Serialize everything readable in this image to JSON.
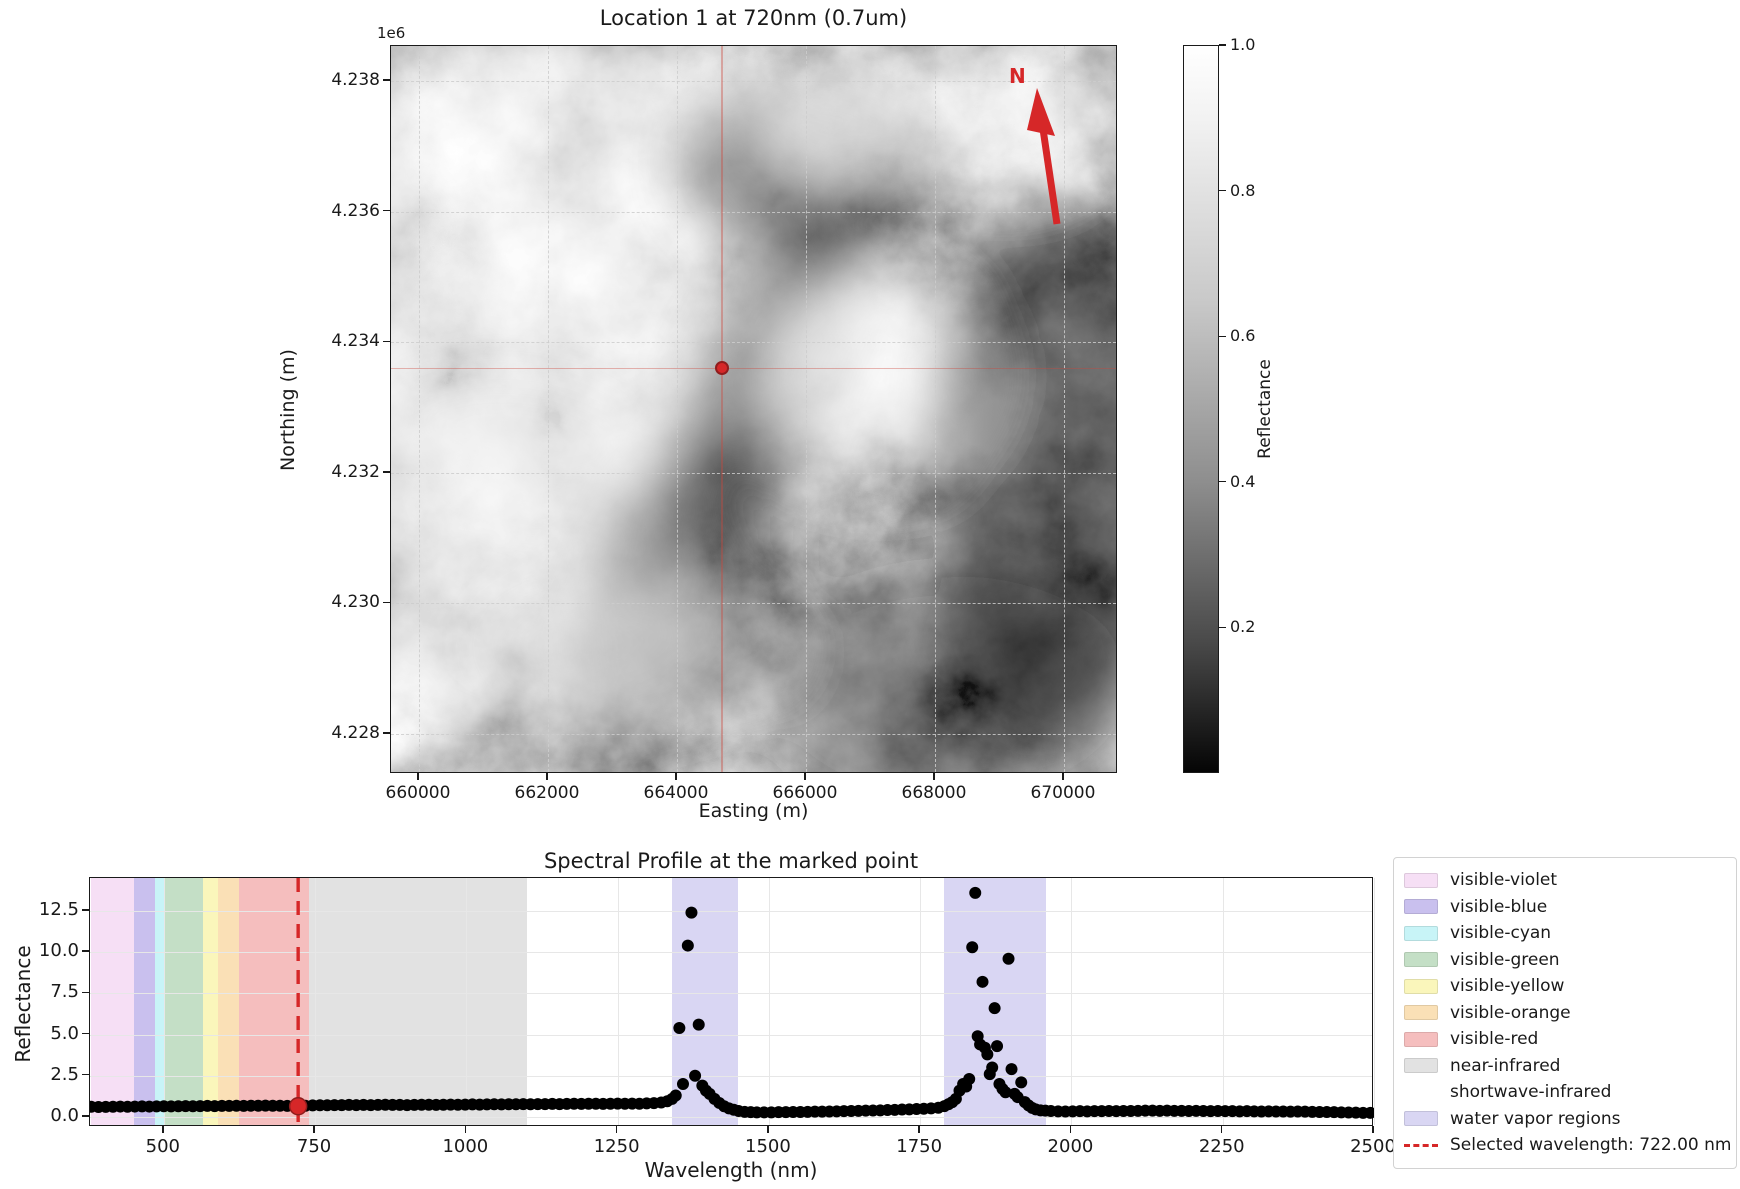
{
  "figure1": {
    "title": "Location 1 at 720nm (0.7um)",
    "offset_label": "1e6",
    "xlabel": "Easting (m)",
    "ylabel": "Northing (m)",
    "north_label": "N"
  },
  "figure2": {
    "title": "Spectral Profile at the marked point",
    "xlabel": "Wavelength (nm)",
    "ylabel": "Reflectance"
  },
  "legend": {
    "entries": [
      {
        "label": "visible-violet",
        "swatch": "#f6dff5",
        "type": "patch"
      },
      {
        "label": "visible-blue",
        "swatch": "#c9c0ee",
        "type": "patch"
      },
      {
        "label": "visible-cyan",
        "swatch": "#c8f4f7",
        "type": "patch"
      },
      {
        "label": "visible-green",
        "swatch": "#c4dfc6",
        "type": "patch"
      },
      {
        "label": "visible-yellow",
        "swatch": "#faf6bb",
        "type": "patch"
      },
      {
        "label": "visible-orange",
        "swatch": "#fae0b6",
        "type": "patch"
      },
      {
        "label": "visible-red",
        "swatch": "#f5bebe",
        "type": "patch"
      },
      {
        "label": "near-infrared",
        "swatch": "#e2e2e2",
        "type": "patch"
      },
      {
        "label": "shortwave-infrared",
        "swatch": "#ffffff",
        "type": "patch-invisible"
      },
      {
        "label": "water vapor regions",
        "swatch": "#d9d6f3",
        "type": "patch"
      },
      {
        "label": "Selected wavelength: 722.00 nm",
        "swatch": "#d62728",
        "type": "dashed-line"
      }
    ]
  },
  "chart_data": [
    {
      "type": "heatmap",
      "title": "Location 1 at 720nm (0.7um)",
      "xlabel": "Easting (m)",
      "ylabel": "Northing (m)",
      "xlim": [
        659566,
        670837
      ],
      "ylim": [
        4227388,
        4238536
      ],
      "x_ticks": [
        {
          "v": 660000,
          "label": "660000"
        },
        {
          "v": 662000,
          "label": "662000"
        },
        {
          "v": 664000,
          "label": "664000"
        },
        {
          "v": 666000,
          "label": "666000"
        },
        {
          "v": 668000,
          "label": "668000"
        },
        {
          "v": 670000,
          "label": "670000"
        }
      ],
      "y_ticks": [
        {
          "v": 4238000,
          "label": "4.238"
        },
        {
          "v": 4236000,
          "label": "4.236"
        },
        {
          "v": 4234000,
          "label": "4.234"
        },
        {
          "v": 4232000,
          "label": "4.232"
        },
        {
          "v": 4230000,
          "label": "4.230"
        },
        {
          "v": 4228000,
          "label": "4.228"
        }
      ],
      "y_offset_factor": "1e6",
      "marked_point": {
        "easting": 664700,
        "northing": 4233600
      },
      "colorbar": {
        "label": "Reflectance",
        "range": [
          0,
          1
        ],
        "ticks": [
          {
            "v": 1.0,
            "label": "1.0"
          },
          {
            "v": 0.8,
            "label": "0.8"
          },
          {
            "v": 0.6,
            "label": "0.6"
          },
          {
            "v": 0.4,
            "label": "0.4"
          },
          {
            "v": 0.2,
            "label": "0.2"
          }
        ]
      },
      "description": "grayscale reflectance image, north arrow in upper right, red marked point with faint red crosshairs"
    },
    {
      "type": "scatter",
      "title": "Spectral Profile at the marked point",
      "xlabel": "Wavelength (nm)",
      "ylabel": "Reflectance",
      "xlim": [
        378,
        2500
      ],
      "ylim": [
        -0.61,
        14.5
      ],
      "x_ticks": [
        {
          "v": 500,
          "label": "500"
        },
        {
          "v": 750,
          "label": "750"
        },
        {
          "v": 1000,
          "label": "1000"
        },
        {
          "v": 1250,
          "label": "1250"
        },
        {
          "v": 1500,
          "label": "1500"
        },
        {
          "v": 1750,
          "label": "1750"
        },
        {
          "v": 2000,
          "label": "2000"
        },
        {
          "v": 2250,
          "label": "2250"
        },
        {
          "v": 2500,
          "label": "2500"
        }
      ],
      "y_ticks": [
        {
          "v": 0.0,
          "label": "0.0"
        },
        {
          "v": 2.5,
          "label": "2.5"
        },
        {
          "v": 5.0,
          "label": "5.0"
        },
        {
          "v": 7.5,
          "label": "7.5"
        },
        {
          "v": 10.0,
          "label": "10.0"
        },
        {
          "v": 12.5,
          "label": "12.5"
        }
      ],
      "bands": [
        {
          "name": "visible-violet",
          "from": 380,
          "to": 450,
          "color": "#f6dff5"
        },
        {
          "name": "visible-blue",
          "from": 450,
          "to": 485,
          "color": "#c9c0ee"
        },
        {
          "name": "visible-cyan",
          "from": 485,
          "to": 500,
          "color": "#c8f4f7"
        },
        {
          "name": "visible-green",
          "from": 500,
          "to": 565,
          "color": "#c4dfc6"
        },
        {
          "name": "visible-yellow",
          "from": 565,
          "to": 590,
          "color": "#faf6bb"
        },
        {
          "name": "visible-orange",
          "from": 590,
          "to": 625,
          "color": "#fae0b6"
        },
        {
          "name": "visible-red",
          "from": 625,
          "to": 740,
          "color": "#f5bebe"
        },
        {
          "name": "near-infrared",
          "from": 740,
          "to": 1100,
          "color": "#e2e2e2"
        },
        {
          "name": "shortwave-infrared",
          "from": 1100,
          "to": 2500,
          "color": "none"
        }
      ],
      "water_vapor_regions": [
        {
          "from": 1340,
          "to": 1449,
          "color": "#d9d6f3"
        },
        {
          "from": 1790,
          "to": 1958,
          "color": "#d9d6f3"
        }
      ],
      "selected_wavelength_nm": 722.0,
      "marked_point": {
        "wavelength": 722,
        "value": 0.65
      },
      "point_color": "#000000",
      "selected_color": "#d62728",
      "points": [
        [
          380,
          0.62
        ],
        [
          392,
          0.6
        ],
        [
          404,
          0.61
        ],
        [
          416,
          0.62
        ],
        [
          428,
          0.63
        ],
        [
          440,
          0.62
        ],
        [
          452,
          0.63
        ],
        [
          464,
          0.64
        ],
        [
          476,
          0.63
        ],
        [
          488,
          0.64
        ],
        [
          500,
          0.65
        ],
        [
          512,
          0.64
        ],
        [
          524,
          0.65
        ],
        [
          536,
          0.66
        ],
        [
          548,
          0.65
        ],
        [
          560,
          0.66
        ],
        [
          572,
          0.67
        ],
        [
          584,
          0.66
        ],
        [
          596,
          0.67
        ],
        [
          608,
          0.67
        ],
        [
          620,
          0.68
        ],
        [
          632,
          0.67
        ],
        [
          644,
          0.68
        ],
        [
          656,
          0.68
        ],
        [
          668,
          0.69
        ],
        [
          680,
          0.68
        ],
        [
          692,
          0.68
        ],
        [
          704,
          0.67
        ],
        [
          716,
          0.66
        ],
        [
          722,
          0.65
        ],
        [
          734,
          0.68
        ],
        [
          746,
          0.7
        ],
        [
          758,
          0.71
        ],
        [
          770,
          0.71
        ],
        [
          782,
          0.72
        ],
        [
          794,
          0.72
        ],
        [
          806,
          0.73
        ],
        [
          818,
          0.72
        ],
        [
          830,
          0.73
        ],
        [
          842,
          0.72
        ],
        [
          854,
          0.73
        ],
        [
          866,
          0.74
        ],
        [
          878,
          0.73
        ],
        [
          890,
          0.73
        ],
        [
          902,
          0.72
        ],
        [
          914,
          0.73
        ],
        [
          926,
          0.74
        ],
        [
          938,
          0.74
        ],
        [
          950,
          0.73
        ],
        [
          962,
          0.74
        ],
        [
          974,
          0.75
        ],
        [
          986,
          0.74
        ],
        [
          998,
          0.75
        ],
        [
          1010,
          0.76
        ],
        [
          1022,
          0.75
        ],
        [
          1034,
          0.76
        ],
        [
          1046,
          0.77
        ],
        [
          1058,
          0.76
        ],
        [
          1070,
          0.77
        ],
        [
          1082,
          0.77
        ],
        [
          1094,
          0.78
        ],
        [
          1106,
          0.77
        ],
        [
          1118,
          0.78
        ],
        [
          1130,
          0.78
        ],
        [
          1142,
          0.79
        ],
        [
          1154,
          0.78
        ],
        [
          1166,
          0.79
        ],
        [
          1178,
          0.8
        ],
        [
          1190,
          0.79
        ],
        [
          1202,
          0.8
        ],
        [
          1214,
          0.8
        ],
        [
          1226,
          0.79
        ],
        [
          1238,
          0.8
        ],
        [
          1250,
          0.81
        ],
        [
          1262,
          0.8
        ],
        [
          1274,
          0.81
        ],
        [
          1286,
          0.8
        ],
        [
          1298,
          0.82
        ],
        [
          1310,
          0.84
        ],
        [
          1322,
          0.88
        ],
        [
          1332,
          0.95
        ],
        [
          1340,
          1.1
        ],
        [
          1346,
          1.3
        ],
        [
          1352,
          5.4
        ],
        [
          1358,
          2.0
        ],
        [
          1366,
          10.4
        ],
        [
          1372,
          12.4
        ],
        [
          1378,
          2.5
        ],
        [
          1384,
          5.6
        ],
        [
          1390,
          1.9
        ],
        [
          1396,
          1.6
        ],
        [
          1402,
          1.4
        ],
        [
          1410,
          1.1
        ],
        [
          1418,
          0.85
        ],
        [
          1426,
          0.65
        ],
        [
          1434,
          0.52
        ],
        [
          1442,
          0.44
        ],
        [
          1450,
          0.36
        ],
        [
          1460,
          0.31
        ],
        [
          1470,
          0.29
        ],
        [
          1480,
          0.28
        ],
        [
          1492,
          0.28
        ],
        [
          1504,
          0.28
        ],
        [
          1516,
          0.29
        ],
        [
          1528,
          0.29
        ],
        [
          1540,
          0.3
        ],
        [
          1552,
          0.3
        ],
        [
          1564,
          0.31
        ],
        [
          1576,
          0.32
        ],
        [
          1588,
          0.32
        ],
        [
          1600,
          0.33
        ],
        [
          1612,
          0.34
        ],
        [
          1624,
          0.35
        ],
        [
          1636,
          0.36
        ],
        [
          1648,
          0.37
        ],
        [
          1660,
          0.38
        ],
        [
          1672,
          0.39
        ],
        [
          1684,
          0.4
        ],
        [
          1696,
          0.42
        ],
        [
          1708,
          0.43
        ],
        [
          1720,
          0.45
        ],
        [
          1732,
          0.46
        ],
        [
          1744,
          0.48
        ],
        [
          1756,
          0.5
        ],
        [
          1768,
          0.52
        ],
        [
          1780,
          0.56
        ],
        [
          1790,
          0.66
        ],
        [
          1797,
          0.78
        ],
        [
          1803,
          0.9
        ],
        [
          1809,
          1.1
        ],
        [
          1815,
          1.6
        ],
        [
          1821,
          2.0
        ],
        [
          1826,
          1.85
        ],
        [
          1831,
          2.3
        ],
        [
          1836,
          10.3
        ],
        [
          1841,
          13.6
        ],
        [
          1845,
          4.9
        ],
        [
          1849,
          4.4
        ],
        [
          1853,
          8.2
        ],
        [
          1857,
          4.2
        ],
        [
          1861,
          3.8
        ],
        [
          1865,
          2.6
        ],
        [
          1869,
          3.0
        ],
        [
          1873,
          6.6
        ],
        [
          1877,
          4.3
        ],
        [
          1881,
          2.0
        ],
        [
          1886,
          1.7
        ],
        [
          1891,
          1.5
        ],
        [
          1896,
          9.6
        ],
        [
          1901,
          2.9
        ],
        [
          1906,
          1.4
        ],
        [
          1911,
          1.2
        ],
        [
          1917,
          2.1
        ],
        [
          1923,
          0.9
        ],
        [
          1929,
          0.7
        ],
        [
          1935,
          0.55
        ],
        [
          1941,
          0.46
        ],
        [
          1949,
          0.4
        ],
        [
          1957,
          0.38
        ],
        [
          1966,
          0.36
        ],
        [
          1978,
          0.34
        ],
        [
          1990,
          0.33
        ],
        [
          2002,
          0.34
        ],
        [
          2014,
          0.35
        ],
        [
          2026,
          0.34
        ],
        [
          2038,
          0.35
        ],
        [
          2050,
          0.35
        ],
        [
          2062,
          0.36
        ],
        [
          2074,
          0.35
        ],
        [
          2086,
          0.36
        ],
        [
          2098,
          0.36
        ],
        [
          2110,
          0.37
        ],
        [
          2122,
          0.38
        ],
        [
          2134,
          0.38
        ],
        [
          2146,
          0.37
        ],
        [
          2158,
          0.38
        ],
        [
          2170,
          0.37
        ],
        [
          2182,
          0.37
        ],
        [
          2194,
          0.36
        ],
        [
          2206,
          0.37
        ],
        [
          2218,
          0.36
        ],
        [
          2230,
          0.35
        ],
        [
          2242,
          0.36
        ],
        [
          2254,
          0.35
        ],
        [
          2266,
          0.35
        ],
        [
          2278,
          0.34
        ],
        [
          2290,
          0.35
        ],
        [
          2302,
          0.34
        ],
        [
          2314,
          0.33
        ],
        [
          2326,
          0.34
        ],
        [
          2338,
          0.33
        ],
        [
          2350,
          0.33
        ],
        [
          2362,
          0.32
        ],
        [
          2374,
          0.33
        ],
        [
          2386,
          0.32
        ],
        [
          2398,
          0.31
        ],
        [
          2410,
          0.3
        ],
        [
          2422,
          0.3
        ],
        [
          2434,
          0.29
        ],
        [
          2446,
          0.28
        ],
        [
          2458,
          0.27
        ],
        [
          2470,
          0.26
        ],
        [
          2482,
          0.25
        ],
        [
          2494,
          0.25
        ]
      ]
    }
  ]
}
